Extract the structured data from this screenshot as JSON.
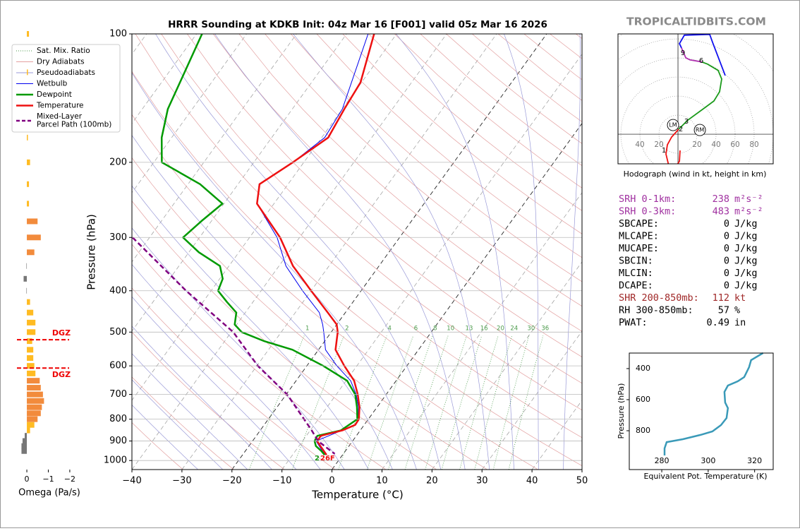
{
  "watermark": "TROPICALTIDBITS.COM",
  "chart_data": [
    {
      "type": "skewt",
      "title": "HRRR Sounding at KDKB Init: 04z Mar 16 [F001] valid 05z Mar 16 2026",
      "xlabel": "Temperature (°C)",
      "ylabel": "Pressure (hPa)",
      "xlim": [
        -40,
        50
      ],
      "ylim": [
        1050,
        100
      ],
      "log_y": true,
      "grid": true,
      "xticks": [
        {
          "value": -40,
          "label": "−40"
        },
        {
          "value": -30,
          "label": "−30"
        },
        {
          "value": -20,
          "label": "−20"
        },
        {
          "value": -10,
          "label": "−10"
        },
        0,
        10,
        20,
        30,
        40,
        50
      ],
      "yticks": [
        100,
        200,
        300,
        400,
        500,
        600,
        700,
        800,
        900,
        1000
      ],
      "reference_lines": [
        {
          "name": "Sat. Mix. Ratio",
          "color": "#4a9a4a"
        },
        {
          "name": "Dry Adiabats",
          "color": "#e3a0a0"
        },
        {
          "name": "Pseudoadiabats",
          "color": "#9a9ad8"
        }
      ],
      "mixing_ratios": [
        1,
        2,
        4,
        6,
        8,
        10,
        13,
        16,
        20,
        24,
        30,
        36
      ],
      "series": [
        {
          "name": "Wetbulb",
          "color": "#0000ee",
          "linewidth": 1,
          "dashed": false,
          "pressure": [
            100,
            150,
            175,
            200,
            225,
            250,
            300,
            350,
            400,
            450,
            480,
            500,
            550,
            600,
            650,
            700,
            750,
            800,
            850,
            900,
            950,
            970
          ],
          "values": [
            -55.7,
            -50,
            -49.4,
            -52.2,
            -55.8,
            -53.4,
            -44.5,
            -38.6,
            -31.7,
            -25.2,
            -22.8,
            -21.5,
            -18.6,
            -14,
            -9.1,
            -6,
            -3.7,
            -2.1,
            -3.7,
            -7.3,
            -4.6,
            -3.4
          ]
        },
        {
          "name": "Dewpoint",
          "color": "#009a00",
          "linewidth": 2.5,
          "dashed": false,
          "pressure": [
            100,
            150,
            175,
            200,
            225,
            250,
            275,
            300,
            325,
            350,
            375,
            400,
            425,
            450,
            480,
            500,
            525,
            550,
            600,
            650,
            700,
            750,
            800,
            850,
            875,
            900,
            925,
            950,
            970
          ],
          "values": [
            -88.9,
            -84.9,
            -82,
            -78.4,
            -67.6,
            -60.3,
            -62,
            -63.3,
            -58,
            -51.8,
            -49.4,
            -48.6,
            -45.2,
            -41.8,
            -40.4,
            -37.9,
            -32.1,
            -25.2,
            -16.7,
            -9.8,
            -6.2,
            -4,
            -2.2,
            -3.9,
            -7.8,
            -7.6,
            -6.6,
            -4.8,
            -3.6
          ]
        },
        {
          "name": "Temperature",
          "color": "#ee1111",
          "linewidth": 2.5,
          "dashed": false,
          "pressure": [
            100,
            130,
            150,
            175,
            200,
            225,
            250,
            300,
            350,
            400,
            450,
            480,
            500,
            550,
            600,
            650,
            700,
            750,
            800,
            825,
            850,
            875,
            900,
            925,
            950,
            970
          ],
          "values": [
            -54.5,
            -50.2,
            -49.6,
            -48.7,
            -52.2,
            -55.7,
            -53.4,
            -43.9,
            -37.2,
            -30,
            -23.5,
            -20,
            -18.7,
            -16.6,
            -12.5,
            -8.4,
            -5.7,
            -3.5,
            -1.9,
            -1.8,
            -3.6,
            -7.1,
            -7.1,
            -5.7,
            -4.3,
            -3.2
          ]
        },
        {
          "name": "Mixed-Layer\nParcel Path (100mb)",
          "color": "#800080",
          "linewidth": 2.5,
          "dashed": true,
          "pressure": [
            300,
            400,
            500,
            600,
            700,
            850,
            900,
            965
          ],
          "values": [
            -73.4,
            -55,
            -39.6,
            -29.8,
            -19.8,
            -9.7,
            -6.9,
            -1.7
          ]
        }
      ],
      "surface_labels": [
        {
          "text": "2",
          "color": "#1a9a1a"
        },
        {
          "text": "26F",
          "color": "#ee1111"
        }
      ]
    },
    {
      "type": "bar",
      "xlabel": "Omega (Pa/s)",
      "xlim": [
        0.33,
        -2.2
      ],
      "ylim": [
        1050,
        100
      ],
      "xticks": [
        0,
        {
          "value": -1,
          "label": "−1"
        },
        {
          "value": -2,
          "label": "−2"
        }
      ],
      "pressure": [
        100,
        123,
        175,
        200,
        225,
        250,
        275,
        300,
        325,
        350,
        375,
        400,
        425,
        450,
        475,
        500,
        525,
        550,
        575,
        600,
        625,
        650,
        675,
        700,
        725,
        750,
        775,
        800,
        825,
        850,
        875,
        900,
        925,
        950
      ],
      "values": [
        -0.1,
        -0.05,
        -0.05,
        -0.15,
        -0.1,
        -0.1,
        -0.5,
        -0.65,
        -0.35,
        0.02,
        0.15,
        0.02,
        -0.15,
        -0.3,
        -0.4,
        -0.4,
        -0.25,
        -0.3,
        -0.3,
        -0.35,
        -0.4,
        -0.6,
        -0.65,
        -0.75,
        -0.8,
        -0.7,
        -0.65,
        -0.5,
        -0.35,
        -0.15,
        0.1,
        0.2,
        0.25,
        0.25
      ],
      "colors": [
        "#ffbb22",
        "#ffbb22",
        "#ffbb22",
        "#ffbb22",
        "#ffbb22",
        "#ffbb22",
        "#f28b3c",
        "#f28b3c",
        "#f28b3c",
        "#777777",
        "#777777",
        "#777777",
        "#ffbb22",
        "#ffbb22",
        "#ffbb22",
        "#ffbb22",
        "#ffbb22",
        "#ffbb22",
        "#ffbb22",
        "#ffbb22",
        "#ffbb22",
        "#f28b3c",
        "#f28b3c",
        "#f28b3c",
        "#f28b3c",
        "#f28b3c",
        "#f28b3c",
        "#f28b3c",
        "#ffbb22",
        "#ffbb22",
        "#777777",
        "#777777",
        "#777777",
        "#777777"
      ],
      "annotations": [
        {
          "label": "DGZ",
          "pressure": 521,
          "color": "#ee0000"
        },
        {
          "label": "DGZ",
          "pressure": 607,
          "color": "#ee0000"
        }
      ]
    },
    {
      "type": "hodograph",
      "xlabel": "Hodograph (wind in kt, height in km)",
      "xlim": [
        -63,
        100
      ],
      "ylim": [
        -31,
        105
      ],
      "xticks": [
        {
          "value": -40,
          "label": "40"
        },
        {
          "value": -20,
          "label": "20"
        },
        20,
        40,
        60,
        80
      ],
      "rings": [
        20,
        40,
        60,
        80,
        100,
        120
      ],
      "series": [
        {
          "color": "#ee1111",
          "u": [
            2.2,
            1.5,
            -2.2,
            -9.6,
            -12.6,
            -11.1,
            -6.7,
            0.7
          ],
          "v": [
            -17,
            -28.2,
            -34.1,
            -33.3,
            -20.7,
            -11.1,
            -3,
            5.2
          ]
        },
        {
          "color": "#1a9a1a",
          "u": [
            0.7,
            10.4,
            28.9,
            37.8,
            43.7,
            45.9,
            42.2,
            31.1,
            25.2
          ],
          "v": [
            5.2,
            14.8,
            28.2,
            34.8,
            44.5,
            57.8,
            66.7,
            73.4,
            75.6
          ]
        },
        {
          "color": "#b030b0",
          "u": [
            25.2,
            12.6,
            8.2,
            3.7
          ],
          "v": [
            75.6,
            77.8,
            80,
            90.4
          ]
        },
        {
          "color": "#1010ee",
          "u": [
            3.7,
            1.5,
            6.7,
            33.3,
            36.3,
            49.6
          ],
          "v": [
            90.4,
            94.8,
            103.7,
            104.5,
            96.3,
            61.5
          ]
        }
      ],
      "height_labels": [
        {
          "label": "1",
          "u": -14.8,
          "v": -17
        },
        {
          "label": "2",
          "u": 3,
          "v": 5.2
        },
        {
          "label": "3",
          "u": 8.9,
          "v": 13.3
        },
        {
          "label": "6",
          "u": 24.5,
          "v": 77
        },
        {
          "label": "9",
          "u": 5.2,
          "v": 85.2
        }
      ],
      "storm_motion": [
        {
          "label": "LM",
          "u": -5.2,
          "v": 9.6
        },
        {
          "label": "RM",
          "u": 23,
          "v": 4.4
        }
      ]
    },
    {
      "type": "line",
      "xlabel": "Equivalent Pot. Temperature (K)",
      "ylabel": "Pressure (hPa)",
      "color": "#3a9ab8",
      "xlim": [
        266,
        328
      ],
      "ylim": [
        1050,
        300
      ],
      "xticks": [
        280,
        300,
        320
      ],
      "yticks": [
        400,
        600,
        800
      ],
      "pressure": [
        300,
        345.5,
        391,
        454.5,
        482,
        509,
        550,
        618,
        654.5,
        718,
        763.6,
        804.5,
        827,
        854.5,
        873,
        913.6,
        959
      ],
      "values": [
        323.6,
        318.5,
        317.6,
        315.5,
        312.7,
        308.5,
        307,
        307.3,
        308.5,
        307.9,
        305.5,
        301.8,
        296.7,
        289.1,
        282.1,
        281.2,
        281.2
      ]
    }
  ],
  "parameters": [
    {
      "label": "SRH 0-1km:",
      "value": 238,
      "unit": "m²s⁻²",
      "color": "#a030a0"
    },
    {
      "label": "SRH 0-3km:",
      "value": 483,
      "unit": "m²s⁻²",
      "color": "#a030a0"
    },
    {
      "label": "SBCAPE:",
      "value": 0,
      "unit": "J/kg"
    },
    {
      "label": "MLCAPE:",
      "value": 0,
      "unit": "J/kg"
    },
    {
      "label": "MUCAPE:",
      "value": 0,
      "unit": "J/kg"
    },
    {
      "label": "SBCIN:",
      "value": 0,
      "unit": "J/kg"
    },
    {
      "label": "MLCIN:",
      "value": 0,
      "unit": "J/kg"
    },
    {
      "label": "DCAPE:",
      "value": 0,
      "unit": "J/kg"
    },
    {
      "label": "SHR 200-850mb:",
      "value": 112,
      "unit": "kt",
      "color": "#a02828"
    },
    {
      "label": "RH 300-850mb:",
      "value": 57,
      "unit": "%"
    },
    {
      "label": "PWAT:",
      "value": 0.49,
      "unit": "in"
    }
  ]
}
